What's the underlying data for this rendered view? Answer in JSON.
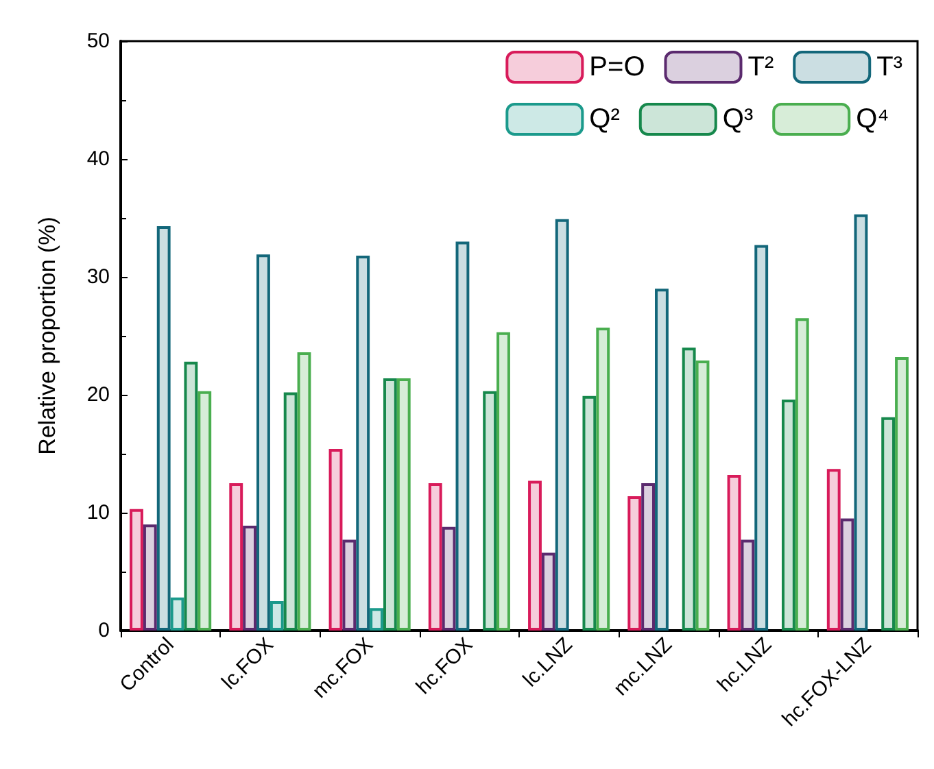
{
  "chart_data": {
    "type": "bar",
    "ylabel": "Relative proportion (%)",
    "categories": [
      "Control",
      "lc.FOX",
      "mc.FOX",
      "hc.FOX",
      "lc.LNZ",
      "mc.LNZ",
      "hc.LNZ",
      "hc.FOX-LNZ"
    ],
    "series": [
      {
        "name": "P=O",
        "color": "#d81b5a",
        "values": [
          10.3,
          12.5,
          15.4,
          12.5,
          12.7,
          11.4,
          13.2,
          13.7
        ]
      },
      {
        "name": "T²",
        "color": "#5b2a6e",
        "values": [
          9.0,
          8.9,
          7.7,
          8.8,
          6.6,
          12.5,
          7.7,
          9.5
        ]
      },
      {
        "name": "T³",
        "color": "#13677a",
        "values": [
          34.3,
          31.9,
          31.8,
          33.0,
          34.9,
          29.0,
          32.7,
          35.3
        ]
      },
      {
        "name": "Q²",
        "color": "#1b9a8c",
        "values": [
          2.8,
          2.5,
          1.9,
          null,
          null,
          null,
          null,
          null
        ]
      },
      {
        "name": "Q³",
        "color": "#16884c",
        "values": [
          22.8,
          20.2,
          21.4,
          20.3,
          19.9,
          24.0,
          19.6,
          18.1
        ]
      },
      {
        "name": "Q⁴",
        "color": "#4aae4f",
        "values": [
          20.3,
          23.6,
          21.4,
          25.3,
          25.7,
          22.9,
          26.5,
          23.2
        ]
      }
    ],
    "ylim": [
      0,
      50
    ],
    "yticks": [
      0,
      10,
      20,
      30,
      40,
      50
    ],
    "grid": false,
    "legend": "top right"
  }
}
